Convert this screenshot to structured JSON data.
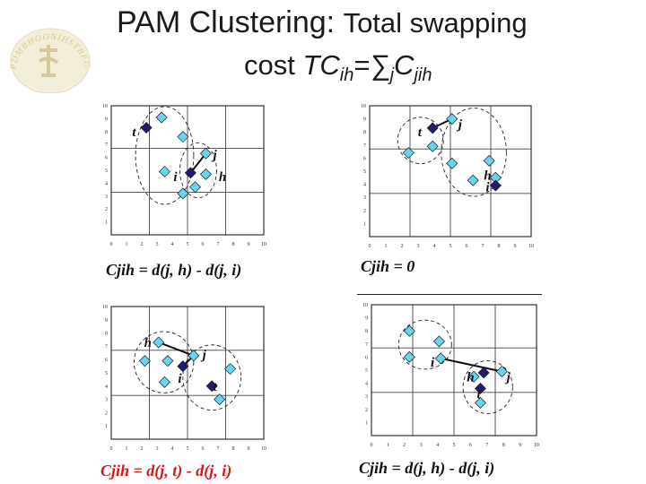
{
  "title": {
    "line1_main": "PAM Clustering: ",
    "line1_rest": "Total swapping",
    "line2_prefix": "cost  ",
    "line2_formula": "TC",
    "line2_sub_ih": "ih",
    "line2_eq": "=",
    "line2_sigma": "∑",
    "line2_sub_j": "j",
    "line2_c": "C",
    "line2_sub_jih": "jih"
  },
  "logo": {
    "text": "PDMBHOONIHSTRFG",
    "icon": "university-seal-icon"
  },
  "axis": {
    "x_ticks": [
      "0",
      "1",
      "2",
      "3",
      "4",
      "5",
      "6",
      "7",
      "8",
      "9",
      "10"
    ],
    "y_ticks": [
      "1",
      "2",
      "3",
      "4",
      "5",
      "6",
      "7",
      "8",
      "9",
      "10"
    ]
  },
  "colors": {
    "medoid": "#1c1c70",
    "object": "#66d6ee",
    "formula_red": "#d01818",
    "line": "#111111"
  },
  "panels": [
    {
      "id": "case1",
      "formula": "Cjih = d(j, h) - d(j, i)",
      "formula_color": "#111111",
      "labels": [
        {
          "text": "t",
          "x": 1.5,
          "y": 8.0
        },
        {
          "text": "j",
          "x": 6.8,
          "y": 6.2
        },
        {
          "text": "i",
          "x": 4.2,
          "y": 4.5
        },
        {
          "text": "h",
          "x": 7.3,
          "y": 4.5
        }
      ],
      "medoids": [
        [
          2.3,
          8.3
        ],
        [
          5.2,
          4.8
        ]
      ],
      "objects": [
        [
          3.3,
          9.1
        ],
        [
          4.7,
          7.6
        ],
        [
          3.5,
          4.9
        ],
        [
          4.7,
          3.2
        ],
        [
          6.2,
          6.3
        ],
        [
          6.2,
          4.7
        ],
        [
          5.5,
          3.7
        ]
      ],
      "links": [
        [
          [
            5.2,
            4.8
          ],
          [
            6.2,
            6.3
          ]
        ]
      ]
    },
    {
      "id": "case2",
      "formula": "Cjih = 0",
      "formula_color": "#111111",
      "labels": [
        {
          "text": "t",
          "x": 3.1,
          "y": 8.0
        },
        {
          "text": "j",
          "x": 5.6,
          "y": 8.6
        },
        {
          "text": "h",
          "x": 7.3,
          "y": 4.7
        },
        {
          "text": "i",
          "x": 7.3,
          "y": 3.8
        }
      ],
      "medoids": [
        [
          3.9,
          8.3
        ],
        [
          7.8,
          3.9
        ]
      ],
      "objects": [
        [
          5.1,
          9.0
        ],
        [
          2.4,
          6.4
        ],
        [
          3.9,
          6.9
        ],
        [
          5.1,
          5.6
        ],
        [
          7.4,
          5.8
        ],
        [
          6.4,
          4.3
        ],
        [
          7.8,
          4.5
        ]
      ],
      "links": [
        [
          [
            3.9,
            8.3
          ],
          [
            5.1,
            9.0
          ]
        ]
      ]
    },
    {
      "id": "case3",
      "formula": "Cjih = d(j, t) - d(j, i)",
      "formula_color": "#d01818",
      "labels": [
        {
          "text": "h",
          "x": 2.4,
          "y": 7.3
        },
        {
          "text": "j",
          "x": 6.1,
          "y": 6.4
        },
        {
          "text": "i",
          "x": 4.5,
          "y": 4.6
        },
        {
          "text": "t",
          "x": 6.8,
          "y": 4.0
        }
      ],
      "medoids": [
        [
          4.7,
          5.5
        ],
        [
          6.6,
          4.0
        ]
      ],
      "objects": [
        [
          3.1,
          7.3
        ],
        [
          5.4,
          6.3
        ],
        [
          2.2,
          5.9
        ],
        [
          3.7,
          5.9
        ],
        [
          3.5,
          4.3
        ],
        [
          7.8,
          5.3
        ],
        [
          7.1,
          3.0
        ]
      ],
      "links": [
        [
          [
            3.1,
            7.3
          ],
          [
            5.4,
            6.3
          ]
        ],
        [
          [
            5.4,
            6.3
          ],
          [
            4.7,
            5.5
          ]
        ]
      ]
    },
    {
      "id": "case4",
      "formula": "Cjih = d(j, h) - d(j, i)",
      "formula_color": "#111111",
      "labels": [
        {
          "text": "i",
          "x": 3.7,
          "y": 5.6
        },
        {
          "text": "h",
          "x": 6.0,
          "y": 4.5
        },
        {
          "text": "j",
          "x": 8.3,
          "y": 4.5
        },
        {
          "text": "t",
          "x": 6.5,
          "y": 3.2
        }
      ],
      "medoids": [
        [
          6.8,
          4.8
        ],
        [
          6.6,
          3.6
        ]
      ],
      "objects": [
        [
          2.3,
          8.0
        ],
        [
          4.1,
          7.2
        ],
        [
          2.3,
          6.0
        ],
        [
          4.2,
          5.9
        ],
        [
          6.2,
          4.5
        ],
        [
          7.9,
          4.9
        ],
        [
          6.6,
          2.5
        ]
      ],
      "links": [
        [
          [
            4.2,
            5.9
          ],
          [
            7.9,
            4.9
          ]
        ]
      ]
    }
  ]
}
